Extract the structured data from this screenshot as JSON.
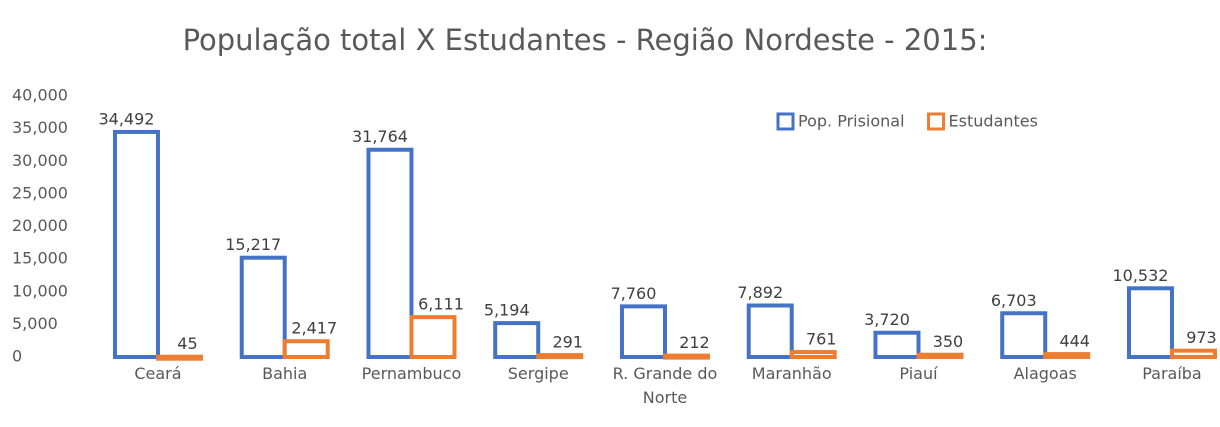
{
  "chart_data": {
    "type": "bar",
    "title": "População total X Estudantes - Região Nordeste - 2015:",
    "categories": [
      "Ceará",
      "Bahia",
      "Pernambuco",
      "Sergipe",
      "R. Grande do Norte",
      "Maranhão",
      "Piauí",
      "Alagoas",
      "Paraíba"
    ],
    "series": [
      {
        "name": "Pop. Prisional",
        "color": "#4472c4",
        "values": [
          34492,
          15217,
          31764,
          5194,
          7760,
          7892,
          3720,
          6703,
          10532
        ],
        "value_labels": [
          "34,492",
          "15,217",
          "31,764",
          "5,194",
          "7,760",
          "7,892",
          "3,720",
          "6,703",
          "10,532"
        ]
      },
      {
        "name": "Estudantes",
        "color": "#ed7d31",
        "values": [
          45,
          2417,
          6111,
          291,
          212,
          761,
          350,
          444,
          973
        ],
        "value_labels": [
          "45",
          "2,417",
          "6,111",
          "291",
          "212",
          "761",
          "350",
          "444",
          "973"
        ]
      }
    ],
    "ylim": [
      0,
      40000
    ],
    "yticks": [
      0,
      {
        "value": 5000,
        "label": "5,000"
      },
      {
        "value": 10000,
        "label": "10,000"
      },
      {
        "value": 15000,
        "label": "15,000"
      },
      {
        "value": 20000,
        "label": "20,000"
      },
      {
        "value": 25000,
        "label": "25,000"
      },
      {
        "value": 30000,
        "label": "30,000"
      },
      {
        "value": 35000,
        "label": "35,000"
      },
      {
        "value": 40000,
        "label": "40,000"
      }
    ],
    "grid": false,
    "legend": "top-right"
  }
}
